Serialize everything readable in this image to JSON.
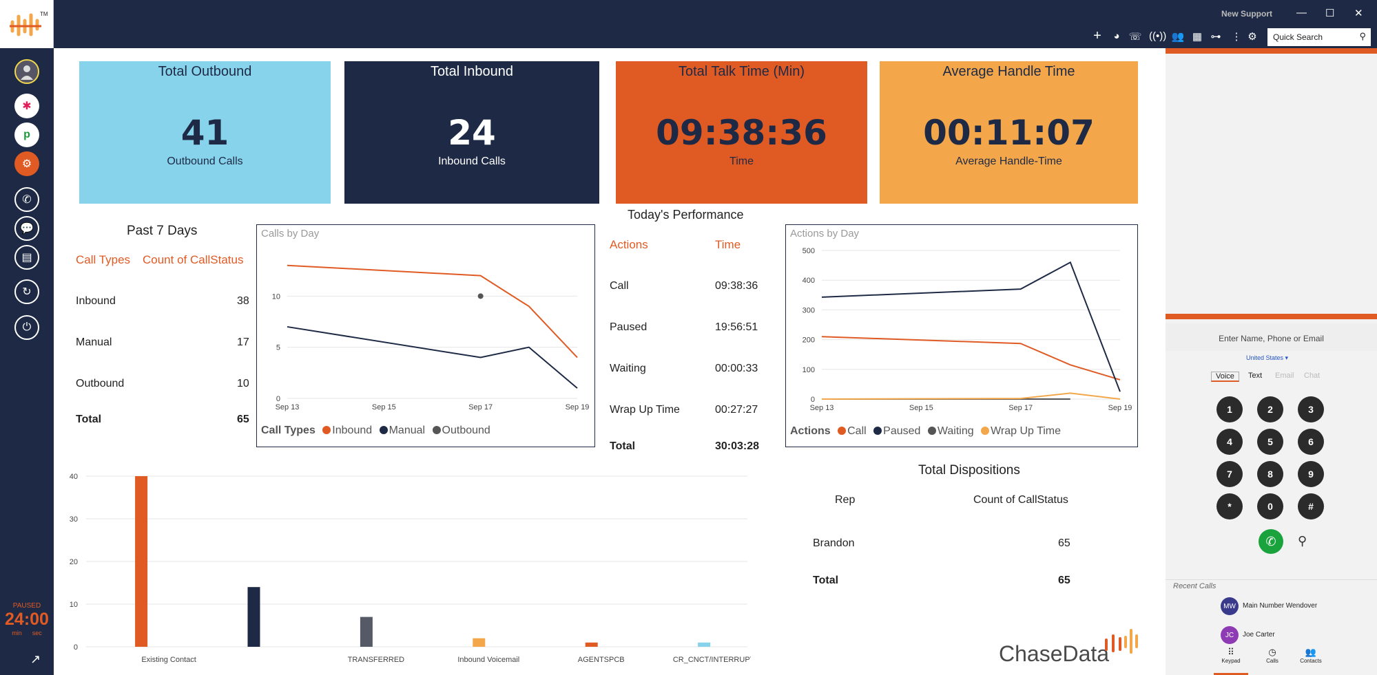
{
  "app": {
    "logo_tm": "TM",
    "window_title": "New Support",
    "min": "—",
    "max": "☐",
    "close": "✕"
  },
  "toolbar": {
    "search_placeholder": "Quick Search"
  },
  "sidebar": {
    "status": "PAUSED",
    "timer": "24:00",
    "min_label": "min",
    "sec_label": "sec"
  },
  "cards": [
    {
      "title": "Total Outbound",
      "value": "41",
      "sub": "Outbound Calls",
      "bg": "#87d3eb",
      "fg": "#1e2a45"
    },
    {
      "title": "Total Inbound",
      "value": "24",
      "sub": "Inbound Calls",
      "bg": "#1e2a45",
      "fg": "#ffffff"
    },
    {
      "title": "Total Talk Time (Min)",
      "value": "09:38:36",
      "sub": "Time",
      "bg": "#e05a24",
      "fg": "#1e2a45"
    },
    {
      "title": "Average Handle Time",
      "value": "00:11:07",
      "sub": "Average Handle-Time",
      "bg": "#f3a74a",
      "fg": "#1e2a45"
    }
  ],
  "past7": {
    "title": "Past 7 Days",
    "h1": "Call Types",
    "h2": "Count of CallStatus",
    "rows": [
      {
        "l": "Inbound",
        "v": "38"
      },
      {
        "l": "Manual",
        "v": "17"
      },
      {
        "l": "Outbound",
        "v": "10"
      }
    ],
    "total_l": "Total",
    "total_v": "65"
  },
  "perf": {
    "title": "Today's Performance",
    "h1": "Actions",
    "h2": "Time",
    "rows": [
      {
        "l": "Call",
        "v": "09:38:36"
      },
      {
        "l": "Paused",
        "v": "19:56:51"
      },
      {
        "l": "Waiting",
        "v": "00:00:33"
      },
      {
        "l": "Wrap Up Time",
        "v": "00:27:27"
      }
    ],
    "total_l": "Total",
    "total_v": "30:03:28"
  },
  "dispositions": {
    "title": "Total Dispositions",
    "h1": "Rep",
    "h2": "Count of CallStatus",
    "row_l": "Brandon",
    "row_v": "65",
    "total_l": "Total",
    "total_v": "65"
  },
  "chart_data": [
    {
      "type": "line",
      "title": "Calls by Day",
      "legend_title": "Call Types",
      "x": [
        "Sep 13",
        "Sep 17",
        "Sep 18",
        "Sep 19"
      ],
      "xticks": [
        "Sep 13",
        "Sep 15",
        "Sep 17",
        "Sep 19"
      ],
      "ylim": [
        0,
        15
      ],
      "yticks": [
        0,
        5,
        10
      ],
      "series": [
        {
          "name": "Inbound",
          "color": "#e05a24",
          "values": [
            13,
            12,
            9,
            4
          ]
        },
        {
          "name": "Manual",
          "color": "#1e2a45",
          "values": [
            7,
            4,
            5,
            1
          ]
        },
        {
          "name": "Outbound",
          "color": "#555555",
          "points": [
            {
              "x": "Sep 17",
              "y": 10
            }
          ]
        }
      ]
    },
    {
      "type": "line",
      "title": "Actions by Day",
      "legend_title": "Actions",
      "x": [
        "Sep 13",
        "Sep 17",
        "Sep 18",
        "Sep 19"
      ],
      "xticks": [
        "Sep 13",
        "Sep 15",
        "Sep 17",
        "Sep 19"
      ],
      "ylim": [
        0,
        500
      ],
      "yticks": [
        0,
        100,
        200,
        300,
        400,
        500
      ],
      "series": [
        {
          "name": "Call",
          "color": "#e05a24",
          "values": [
            210,
            187,
            115,
            65
          ]
        },
        {
          "name": "Paused",
          "color": "#1e2a45",
          "values": [
            343,
            370,
            460,
            25
          ]
        },
        {
          "name": "Waiting",
          "color": "#555555",
          "values": [
            0,
            0,
            0,
            null
          ]
        },
        {
          "name": "Wrap Up Time",
          "color": "#f3a74a",
          "values": [
            0,
            2,
            20,
            0
          ]
        }
      ]
    },
    {
      "type": "bar",
      "ylim": [
        0,
        40
      ],
      "yticks": [
        0,
        10,
        20,
        30,
        40
      ],
      "categories": [
        "Existing Contact",
        "",
        "TRANSFERRED",
        "Inbound Voicemail",
        "AGENTSPCB",
        "CR_CNCT/INTERRUPT"
      ],
      "values": [
        40,
        14,
        7,
        2,
        1,
        1
      ],
      "colors": [
        "#e05a24",
        "#1e2a45",
        "#555a66",
        "#f3a74a",
        "#e05a24",
        "#87d3eb"
      ]
    }
  ],
  "dialer": {
    "placeholder": "Enter Name, Phone or Email",
    "country": "United States",
    "tabs": [
      "Voice",
      "Text",
      "Email",
      "Chat"
    ],
    "keys": [
      "1",
      "2",
      "3",
      "4",
      "5",
      "6",
      "7",
      "8",
      "9",
      "*",
      "0",
      "#"
    ]
  },
  "recent": {
    "title": "Recent Calls",
    "items": [
      {
        "initials": "MW",
        "name": "Main Number Wendover",
        "color": "#3a3a8c"
      },
      {
        "initials": "JC",
        "name": "Joe Carter",
        "color": "#8e3ab5"
      }
    ]
  },
  "bottom_nav": [
    "Keypad",
    "Calls",
    "Contacts"
  ],
  "brand": "ChaseData"
}
